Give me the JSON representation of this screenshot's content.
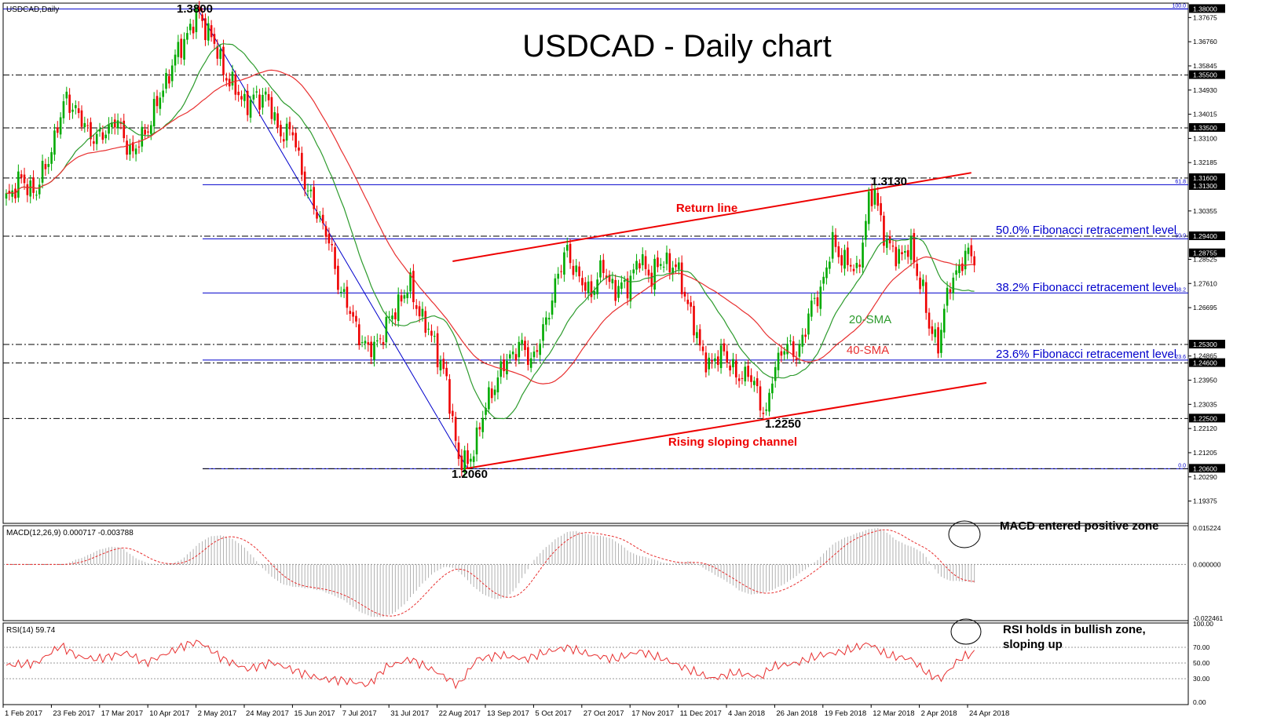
{
  "window": {
    "title": "USDCAD,Daily"
  },
  "chart_data": {
    "type": "candlestick",
    "symbol": "USDCAD",
    "timeframe": "Daily",
    "title": "USDCAD - Daily chart",
    "date_labels": [
      "1 Feb 2017",
      "23 Feb 2017",
      "17 Mar 2017",
      "10 Apr 2017",
      "2 May 2017",
      "24 May 2017",
      "15 Jun 2017",
      "7 Jul 2017",
      "31 Jul 2017",
      "22 Aug 2017",
      "13 Sep 2017",
      "5 Oct 2017",
      "27 Oct 2017",
      "17 Nov 2017",
      "11 Dec 2017",
      "4 Jan 2018",
      "26 Jan 2018",
      "19 Feb 2018",
      "12 Mar 2018",
      "2 Apr 2018",
      "24 Apr 2018"
    ],
    "price_axis": {
      "ticks": [
        "1.37675",
        "1.36760",
        "1.35845",
        "1.34930",
        "1.34015",
        "1.33100",
        "1.32185",
        "1.30355",
        "1.28525",
        "1.27610",
        "1.26695",
        "1.24865",
        "1.23950",
        "1.23035",
        "1.22120",
        "1.21205",
        "1.20290",
        "1.19375"
      ],
      "range": [
        1.1862,
        1.3822
      ],
      "highlighted": [
        {
          "label": "1.38000",
          "value": 1.38
        },
        {
          "label": "1.35500",
          "value": 1.355
        },
        {
          "label": "1.33500",
          "value": 1.335
        },
        {
          "label": "1.31600",
          "value": 1.316
        },
        {
          "label": "1.31300",
          "value": 1.313
        },
        {
          "label": "1.29400",
          "value": 1.294
        },
        {
          "label": "1.28755",
          "value": 1.28755
        },
        {
          "label": "1.25300",
          "value": 1.253
        },
        {
          "label": "1.24600",
          "value": 1.246
        },
        {
          "label": "1.22500",
          "value": 1.225
        },
        {
          "label": "1.20600",
          "value": 1.206
        }
      ]
    },
    "horizontal_levels": [
      1.355,
      1.335,
      1.316,
      1.294,
      1.253,
      1.246,
      1.225
    ],
    "ohlc_anchors": [
      {
        "i": 0,
        "c": 1.308
      },
      {
        "i": 4,
        "c": 1.315
      },
      {
        "i": 10,
        "c": 1.311
      },
      {
        "i": 15,
        "c": 1.327
      },
      {
        "i": 20,
        "c": 1.347
      },
      {
        "i": 24,
        "c": 1.339
      },
      {
        "i": 30,
        "c": 1.33
      },
      {
        "i": 36,
        "c": 1.338
      },
      {
        "i": 42,
        "c": 1.325
      },
      {
        "i": 48,
        "c": 1.338
      },
      {
        "i": 54,
        "c": 1.356
      },
      {
        "i": 60,
        "c": 1.371
      },
      {
        "i": 64,
        "c": 1.378
      },
      {
        "i": 68,
        "c": 1.369
      },
      {
        "i": 74,
        "c": 1.352
      },
      {
        "i": 80,
        "c": 1.344
      },
      {
        "i": 86,
        "c": 1.348
      },
      {
        "i": 90,
        "c": 1.334
      },
      {
        "i": 95,
        "c": 1.333
      },
      {
        "i": 100,
        "c": 1.31
      },
      {
        "i": 106,
        "c": 1.296
      },
      {
        "i": 110,
        "c": 1.277
      },
      {
        "i": 115,
        "c": 1.262
      },
      {
        "i": 120,
        "c": 1.25
      },
      {
        "i": 125,
        "c": 1.257
      },
      {
        "i": 130,
        "c": 1.269
      },
      {
        "i": 134,
        "c": 1.275
      },
      {
        "i": 138,
        "c": 1.262
      },
      {
        "i": 142,
        "c": 1.254
      },
      {
        "i": 146,
        "c": 1.238
      },
      {
        "i": 150,
        "c": 1.21
      },
      {
        "i": 153,
        "c": 1.207
      },
      {
        "i": 157,
        "c": 1.222
      },
      {
        "i": 161,
        "c": 1.236
      },
      {
        "i": 165,
        "c": 1.245
      },
      {
        "i": 170,
        "c": 1.253
      },
      {
        "i": 174,
        "c": 1.247
      },
      {
        "i": 178,
        "c": 1.257
      },
      {
        "i": 182,
        "c": 1.276
      },
      {
        "i": 186,
        "c": 1.289
      },
      {
        "i": 190,
        "c": 1.277
      },
      {
        "i": 194,
        "c": 1.273
      },
      {
        "i": 198,
        "c": 1.282
      },
      {
        "i": 202,
        "c": 1.273
      },
      {
        "i": 206,
        "c": 1.276
      },
      {
        "i": 210,
        "c": 1.285
      },
      {
        "i": 214,
        "c": 1.279
      },
      {
        "i": 218,
        "c": 1.285
      },
      {
        "i": 222,
        "c": 1.282
      },
      {
        "i": 226,
        "c": 1.269
      },
      {
        "i": 230,
        "c": 1.251
      },
      {
        "i": 234,
        "c": 1.245
      },
      {
        "i": 238,
        "c": 1.251
      },
      {
        "i": 242,
        "c": 1.24
      },
      {
        "i": 246,
        "c": 1.243
      },
      {
        "i": 250,
        "c": 1.231
      },
      {
        "i": 252,
        "c": 1.227
      },
      {
        "i": 254,
        "c": 1.24
      },
      {
        "i": 258,
        "c": 1.254
      },
      {
        "i": 262,
        "c": 1.248
      },
      {
        "i": 266,
        "c": 1.264
      },
      {
        "i": 270,
        "c": 1.274
      },
      {
        "i": 274,
        "c": 1.291
      },
      {
        "i": 278,
        "c": 1.285
      },
      {
        "i": 282,
        "c": 1.28
      },
      {
        "i": 286,
        "c": 1.306
      },
      {
        "i": 288,
        "c": 1.311
      },
      {
        "i": 292,
        "c": 1.29
      },
      {
        "i": 296,
        "c": 1.287
      },
      {
        "i": 300,
        "c": 1.289
      },
      {
        "i": 304,
        "c": 1.273
      },
      {
        "i": 306,
        "c": 1.259
      },
      {
        "i": 309,
        "c": 1.254
      },
      {
        "i": 313,
        "c": 1.276
      },
      {
        "i": 316,
        "c": 1.283
      },
      {
        "i": 319,
        "c": 1.287
      }
    ],
    "annotations": [
      {
        "text": "1.3800",
        "price": 1.38
      },
      {
        "text": "1.3130",
        "price": 1.313
      },
      {
        "text": "1.2250",
        "price": 1.225
      },
      {
        "text": "1.2060",
        "price": 1.206
      },
      {
        "text": "Return line"
      },
      {
        "text": "Rising sloping channel"
      },
      {
        "text": "20-SMA"
      },
      {
        "text": "40-SMA"
      },
      {
        "text": "50.0% Fibonacci retracement level",
        "price": 1.293
      },
      {
        "text": "38.2% Fibonacci retracement level",
        "price": 1.272
      },
      {
        "text": "23.6% Fibonacci retracement level",
        "price": 1.246
      }
    ],
    "fibonacci": {
      "from": 1.206,
      "to": 1.38,
      "levels": [
        {
          "label": "100.0",
          "value": 1.38
        },
        {
          "label": "61.8",
          "value": 1.3135
        },
        {
          "label": "50.0",
          "value": 1.293
        },
        {
          "label": "38.2",
          "value": 1.2725
        },
        {
          "label": "23.6",
          "value": 1.2471
        },
        {
          "label": "0.0",
          "value": 1.206
        }
      ]
    },
    "channel": {
      "upper": [
        {
          "i": 148,
          "p": 1.2845
        },
        {
          "i": 320,
          "p": 1.318
        }
      ],
      "lower": [
        {
          "i": 152,
          "p": 1.206
        },
        {
          "i": 325,
          "p": 1.2385
        }
      ]
    },
    "series_colors": {
      "up": "#00aa00",
      "down": "#ee0000",
      "sma20": "#2d9b2d",
      "sma40": "#e83030",
      "fib": "#0000cc",
      "channel": "#ee0000",
      "macd_signal": "#e83030"
    },
    "macd": {
      "header": "MACD(12,26,9) 0.000717 -0.003788",
      "ticks": [
        "0.015224",
        "0.000000",
        "-0.022461"
      ],
      "range": [
        -0.0225,
        0.0152
      ]
    },
    "rsi": {
      "header": "RSI(14) 59.74",
      "ticks": [
        "100.00",
        "70.00",
        "50.00",
        "30.00",
        "0.00"
      ],
      "levels": [
        70,
        50,
        30
      ],
      "anchors": [
        {
          "i": 0,
          "v": 47
        },
        {
          "i": 10,
          "v": 50
        },
        {
          "i": 18,
          "v": 72
        },
        {
          "i": 24,
          "v": 58
        },
        {
          "i": 30,
          "v": 55
        },
        {
          "i": 40,
          "v": 63
        },
        {
          "i": 46,
          "v": 50
        },
        {
          "i": 52,
          "v": 60
        },
        {
          "i": 60,
          "v": 74
        },
        {
          "i": 64,
          "v": 77
        },
        {
          "i": 72,
          "v": 55
        },
        {
          "i": 80,
          "v": 42
        },
        {
          "i": 88,
          "v": 51
        },
        {
          "i": 96,
          "v": 40
        },
        {
          "i": 104,
          "v": 30
        },
        {
          "i": 112,
          "v": 28
        },
        {
          "i": 120,
          "v": 22
        },
        {
          "i": 126,
          "v": 45
        },
        {
          "i": 134,
          "v": 55
        },
        {
          "i": 142,
          "v": 40
        },
        {
          "i": 150,
          "v": 22
        },
        {
          "i": 156,
          "v": 55
        },
        {
          "i": 164,
          "v": 60
        },
        {
          "i": 172,
          "v": 55
        },
        {
          "i": 180,
          "v": 65
        },
        {
          "i": 186,
          "v": 70
        },
        {
          "i": 194,
          "v": 60
        },
        {
          "i": 202,
          "v": 55
        },
        {
          "i": 210,
          "v": 65
        },
        {
          "i": 218,
          "v": 55
        },
        {
          "i": 226,
          "v": 42
        },
        {
          "i": 234,
          "v": 30
        },
        {
          "i": 242,
          "v": 38
        },
        {
          "i": 250,
          "v": 32
        },
        {
          "i": 254,
          "v": 45
        },
        {
          "i": 262,
          "v": 50
        },
        {
          "i": 270,
          "v": 60
        },
        {
          "i": 278,
          "v": 65
        },
        {
          "i": 286,
          "v": 75
        },
        {
          "i": 292,
          "v": 60
        },
        {
          "i": 300,
          "v": 55
        },
        {
          "i": 306,
          "v": 35
        },
        {
          "i": 310,
          "v": 30
        },
        {
          "i": 316,
          "v": 55
        },
        {
          "i": 320,
          "v": 62
        }
      ]
    }
  },
  "notes": {
    "macd_note": "MACD entered positive zone",
    "rsi_note_line1": "RSI holds in bullish zone,",
    "rsi_note_line2": "sloping up"
  }
}
